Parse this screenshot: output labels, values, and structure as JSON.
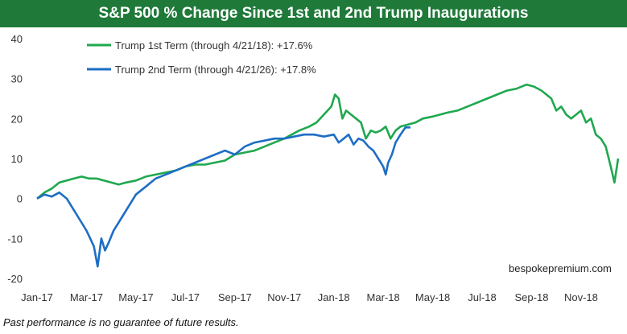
{
  "chart_data": {
    "type": "line",
    "title": "S&P 500 % Change Since 1st and 2nd Trump Inaugurations",
    "xlabel": "",
    "ylabel": "",
    "ylim": [
      -20,
      40
    ],
    "yticks": [
      -20,
      -10,
      0,
      10,
      20,
      30,
      40
    ],
    "xrange": [
      0,
      23.5
    ],
    "xticks": [
      {
        "x": 0,
        "label": "Jan-17"
      },
      {
        "x": 2,
        "label": "Mar-17"
      },
      {
        "x": 4,
        "label": "May-17"
      },
      {
        "x": 6,
        "label": "Jul-17"
      },
      {
        "x": 8,
        "label": "Sep-17"
      },
      {
        "x": 10,
        "label": "Nov-17"
      },
      {
        "x": 12,
        "label": "Jan-18"
      },
      {
        "x": 14,
        "label": "Mar-18"
      },
      {
        "x": 16,
        "label": "May-18"
      },
      {
        "x": 18,
        "label": "Jul-18"
      },
      {
        "x": 20,
        "label": "Sep-18"
      },
      {
        "x": 22,
        "label": "Nov-18"
      }
    ],
    "grid": false,
    "legend_position": "top-left",
    "series": [
      {
        "name": "Trump 1st Term (through 4/21/18): +17.6%",
        "color": "#1fa84f",
        "x": [
          0,
          0.3,
          0.6,
          0.9,
          1.2,
          1.5,
          1.8,
          2.1,
          2.4,
          2.7,
          3,
          3.3,
          3.6,
          4,
          4.4,
          4.8,
          5.2,
          5.6,
          6,
          6.4,
          6.8,
          7.2,
          7.6,
          8,
          8.4,
          8.8,
          9.2,
          9.6,
          10,
          10.3,
          10.6,
          11,
          11.3,
          11.6,
          11.9,
          12.05,
          12.2,
          12.35,
          12.5,
          12.7,
          12.9,
          13.1,
          13.3,
          13.5,
          13.7,
          13.9,
          14.1,
          14.3,
          14.5,
          14.7,
          15,
          15.3,
          15.6,
          16,
          16.3,
          16.6,
          17,
          17.4,
          17.8,
          18.2,
          18.6,
          19,
          19.4,
          19.8,
          20.1,
          20.4,
          20.6,
          20.8,
          21,
          21.2,
          21.4,
          21.6,
          21.8,
          22,
          22.2,
          22.4,
          22.6,
          22.8,
          23,
          23.2,
          23.35,
          23.5
        ],
        "values": [
          0,
          1.5,
          2.5,
          4,
          4.5,
          5,
          5.5,
          5,
          5,
          4.5,
          4,
          3.5,
          4,
          4.5,
          5.5,
          6,
          6.5,
          7,
          8,
          8.5,
          8.5,
          9,
          9.5,
          11,
          11.5,
          12,
          13,
          14,
          15,
          16,
          17,
          18,
          19,
          21,
          23,
          26,
          25,
          20,
          22,
          21,
          20,
          19,
          15,
          17,
          16.5,
          17,
          18,
          15,
          17,
          18,
          18.5,
          19,
          20,
          20.5,
          21,
          21.5,
          22,
          23,
          24,
          25,
          26,
          27,
          27.5,
          28.5,
          28,
          27,
          26,
          25,
          22,
          23,
          21,
          20,
          21,
          22,
          19,
          20,
          16,
          15,
          13,
          8,
          4,
          10
        ],
        "label_text": "Trump 1st Term (through 4/21/18): +17.6%"
      },
      {
        "name": "Trump 2nd Term (through 4/21/26): +17.8%",
        "color": "#1e6ec4",
        "x": [
          0,
          0.3,
          0.6,
          0.9,
          1.2,
          1.5,
          1.8,
          2.0,
          2.15,
          2.3,
          2.45,
          2.6,
          2.75,
          2.9,
          3.1,
          3.4,
          3.7,
          4,
          4.4,
          4.8,
          5.2,
          5.6,
          6,
          6.4,
          6.8,
          7.2,
          7.6,
          8,
          8.4,
          8.8,
          9.2,
          9.6,
          10,
          10.4,
          10.8,
          11.2,
          11.6,
          12,
          12.2,
          12.4,
          12.6,
          12.8,
          13,
          13.2,
          13.4,
          13.6,
          13.8,
          14,
          14.1,
          14.2,
          14.35,
          14.5,
          14.7,
          14.9,
          15.1
        ],
        "values": [
          0,
          1,
          0.5,
          1.5,
          0,
          -3,
          -6,
          -8,
          -10,
          -12,
          -17,
          -10,
          -13,
          -11,
          -8,
          -5,
          -2,
          1,
          3,
          5,
          6,
          7,
          8,
          9,
          10,
          11,
          12,
          11,
          13,
          14,
          14.5,
          15,
          15,
          15.5,
          16,
          16,
          15.5,
          16,
          14,
          15,
          16,
          13.5,
          15,
          14.5,
          13,
          12,
          10,
          8,
          6,
          9,
          11,
          14,
          16,
          17.8,
          17.8
        ],
        "label_text": "Trump 2nd Term (through 4/21/26): +17.8%"
      }
    ]
  },
  "watermark": "bespokepremium.com",
  "footnote": "Past performance is no guarantee of future results."
}
